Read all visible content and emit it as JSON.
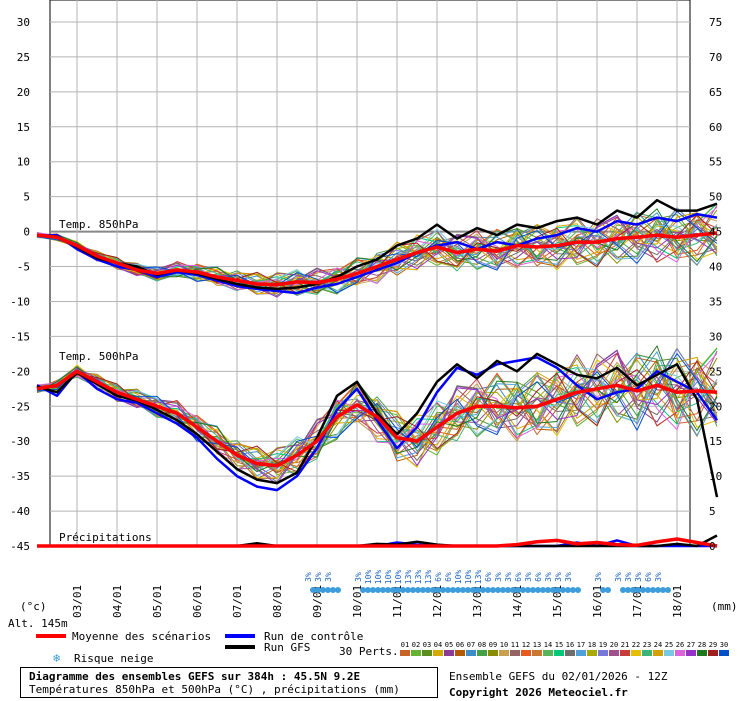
{
  "chart_data": {
    "type": "line",
    "title": "Diagramme des ensembles GEFS sur 384h : 45.5N 9.2E",
    "subtitle": "Températures 850hPa et 500hPa (°C) , précipitations (mm)",
    "xlabel": "",
    "ylabel_left": "(°c)",
    "ylabel_right": "(mm)",
    "left_ticks": [
      "30",
      "25",
      "20",
      "15",
      "10",
      "5",
      "0",
      "-5",
      "-10",
      "-15",
      "-20",
      "-25",
      "-30",
      "-35",
      "-40",
      "-45"
    ],
    "right_ticks": [
      "75",
      "70",
      "65",
      "60",
      "55",
      "50",
      "45",
      "40",
      "35",
      "30",
      "25",
      "20",
      "15",
      "10",
      "5",
      "0"
    ],
    "ylim_left": [
      -45,
      30
    ],
    "ylim_right": [
      0,
      75
    ],
    "x_labels": [
      "03/01",
      "04/01",
      "05/01",
      "06/01",
      "07/01",
      "08/01",
      "09/01",
      "10/01",
      "11/01",
      "12/01",
      "13/01",
      "14/01",
      "15/01",
      "16/01",
      "17/01",
      "18/01"
    ],
    "grid": true,
    "panel_labels": {
      "t850": "Temp. 850hPa",
      "t500": "Temp. 500hPa",
      "precip": "Précipitations"
    },
    "altitude": "Alt. 145m",
    "series": [
      {
        "name": "Moyenne des scénarios",
        "color": "#ff0000",
        "t850": [
          -0.5,
          -0.8,
          -2.0,
          -3.5,
          -4.5,
          -5.5,
          -6.0,
          -5.5,
          -5.8,
          -6.5,
          -7.0,
          -7.5,
          -7.6,
          -7.2,
          -7.3,
          -6.8,
          -6.0,
          -5.0,
          -4.0,
          -3.0,
          -2.2,
          -3.0,
          -2.5,
          -2.8,
          -2.0,
          -2.2,
          -2.0,
          -1.5,
          -1.5,
          -1.0,
          -0.8,
          -0.5,
          -0.8,
          -0.5,
          -0.2
        ],
        "t500": [
          -22.5,
          -22.0,
          -20.0,
          -21.5,
          -23.0,
          -24.0,
          -25.0,
          -26.0,
          -28.0,
          -30.0,
          -32.0,
          -33.2,
          -33.5,
          -32.0,
          -30.0,
          -26.5,
          -24.8,
          -26.5,
          -29.5,
          -30.0,
          -28.0,
          -26.0,
          -25.0,
          -25.0,
          -25.2,
          -25.0,
          -24.0,
          -23.0,
          -22.5,
          -22.0,
          -22.8,
          -22.0,
          -23.0,
          -22.8,
          -23.0
        ],
        "precip": [
          0,
          0,
          0,
          0,
          0,
          0,
          0,
          0,
          0,
          0,
          0,
          0,
          0,
          0,
          0,
          0,
          0,
          0,
          0,
          0,
          0,
          0,
          0,
          0,
          0.2,
          0.6,
          0.8,
          0.3,
          0.5,
          0.2,
          0.1,
          0.6,
          1.0,
          0.5,
          0
        ]
      },
      {
        "name": "Run de contrôle",
        "color": "#0000ff",
        "t850": [
          -0.6,
          -0.5,
          -2.5,
          -4.0,
          -5.0,
          -5.5,
          -6.5,
          -5.8,
          -6.2,
          -7.0,
          -7.8,
          -8.2,
          -8.5,
          -8.8,
          -8.0,
          -7.5,
          -6.5,
          -5.5,
          -4.5,
          -3.0,
          -2.0,
          -1.5,
          -2.5,
          -1.5,
          -2.0,
          -1.0,
          -0.5,
          0.5,
          0.0,
          1.5,
          1.0,
          2.0,
          1.5,
          2.5,
          2.0
        ],
        "t500": [
          -22.0,
          -23.5,
          -20.0,
          -22.5,
          -24.0,
          -24.5,
          -26.0,
          -27.5,
          -29.5,
          -32.5,
          -35.0,
          -36.5,
          -37.0,
          -35.0,
          -31.0,
          -25.5,
          -22.5,
          -27.0,
          -31.0,
          -28.0,
          -23.0,
          -19.5,
          -20.5,
          -19.0,
          -18.5,
          -18.0,
          -19.5,
          -22.0,
          -24.0,
          -23.0,
          -22.5,
          -20.0,
          -21.5,
          -23.0,
          -27.0
        ],
        "precip": [
          0,
          0,
          0,
          0,
          0,
          0,
          0,
          0,
          0,
          0,
          0,
          0,
          0,
          0,
          0,
          0,
          0,
          0,
          0.5,
          0.2,
          0,
          0,
          0,
          0,
          0,
          0,
          0,
          0.5,
          0,
          0.8,
          0,
          0,
          0,
          0,
          0
        ]
      },
      {
        "name": "Run GFS",
        "color": "#000000",
        "t850": [
          -0.5,
          -0.7,
          -2.2,
          -3.8,
          -4.5,
          -5.0,
          -6.2,
          -5.5,
          -6.0,
          -6.8,
          -7.5,
          -8.0,
          -8.2,
          -8.0,
          -7.5,
          -6.5,
          -5.0,
          -4.0,
          -2.0,
          -1.0,
          1.0,
          -1.0,
          0.5,
          -0.5,
          1.0,
          0.5,
          1.5,
          2.0,
          1.0,
          3.0,
          2.0,
          4.5,
          3.0,
          3.0,
          4.0
        ],
        "t500": [
          -22.2,
          -23.0,
          -20.2,
          -21.8,
          -23.5,
          -24.2,
          -25.5,
          -27.0,
          -29.0,
          -31.5,
          -34.0,
          -35.5,
          -36.0,
          -34.5,
          -29.5,
          -23.5,
          -21.5,
          -26.0,
          -29.0,
          -26.0,
          -21.5,
          -19.0,
          -21.0,
          -18.5,
          -20.0,
          -17.5,
          -19.0,
          -20.5,
          -21.0,
          -19.5,
          -22.0,
          -20.5,
          -19.0,
          -24.0,
          -38.0
        ],
        "precip": [
          0,
          0,
          0,
          0,
          0,
          0,
          0,
          0,
          0,
          0,
          0,
          0.4,
          0,
          0,
          0,
          0,
          0,
          0.3,
          0.2,
          0.6,
          0.2,
          0,
          0,
          0,
          0,
          0,
          0,
          0,
          0,
          0,
          0,
          0,
          0.3,
          0,
          1.5
        ]
      }
    ],
    "perturbation_colors": [
      "#c86428",
      "#64b432",
      "#5a8c1e",
      "#d2aa00",
      "#8c3c96",
      "#b45a00",
      "#3c8cc8",
      "#46a046",
      "#8c8c00",
      "#c8a050",
      "#966464",
      "#e65a1e",
      "#c87832",
      "#5ab45a",
      "#00c878",
      "#6e6e6e",
      "#50a0dc",
      "#aaaa00",
      "#7878dc",
      "#a0508c",
      "#c83c3c",
      "#e6be00",
      "#3cb478",
      "#d2a000",
      "#78c8e6",
      "#dc64dc",
      "#9632c8",
      "#1e781e",
      "#a01e1e",
      "#0050c8"
    ]
  },
  "legend": {
    "mean": "Moyenne des scénarios",
    "control": "Run de contrôle",
    "gfs": "Run GFS",
    "snow": "Risque neige",
    "perts_label": "30 Perts.",
    "perts_numbers": [
      "01",
      "02",
      "03",
      "04",
      "05",
      "06",
      "07",
      "08",
      "09",
      "10",
      "11",
      "12",
      "13",
      "14",
      "15",
      "16",
      "17",
      "18",
      "19",
      "20",
      "21",
      "22",
      "23",
      "24",
      "25",
      "26",
      "27",
      "28",
      "29",
      "30"
    ]
  },
  "snow_labels": [
    {
      "day": 6.0,
      "lines": [
        "3%"
      ]
    },
    {
      "day": 6.25,
      "lines": [
        "3%"
      ]
    },
    {
      "day": 6.5,
      "lines": [
        "3%"
      ]
    },
    {
      "day": 7.25,
      "lines": [
        "3%"
      ]
    },
    {
      "day": 7.5,
      "lines": [
        "10%"
      ]
    },
    {
      "day": 7.75,
      "lines": [
        "10%"
      ]
    },
    {
      "day": 8.0,
      "lines": [
        "10%"
      ]
    },
    {
      "day": 8.25,
      "lines": [
        "10%"
      ]
    },
    {
      "day": 8.5,
      "lines": [
        "13%"
      ]
    },
    {
      "day": 8.75,
      "lines": [
        "13%"
      ]
    },
    {
      "day": 9.0,
      "lines": [
        "13%"
      ]
    },
    {
      "day": 9.25,
      "lines": [
        "6%"
      ]
    },
    {
      "day": 9.5,
      "lines": [
        "6%"
      ]
    },
    {
      "day": 9.75,
      "lines": [
        "10%"
      ]
    },
    {
      "day": 10.0,
      "lines": [
        "10%"
      ]
    },
    {
      "day": 10.25,
      "lines": [
        "13%"
      ]
    },
    {
      "day": 10.5,
      "lines": [
        "6%"
      ]
    },
    {
      "day": 10.75,
      "lines": [
        "3%"
      ]
    },
    {
      "day": 11.0,
      "lines": [
        "3%"
      ]
    },
    {
      "day": 11.25,
      "lines": [
        "6%"
      ]
    },
    {
      "day": 11.5,
      "lines": [
        "3%"
      ]
    },
    {
      "day": 11.75,
      "lines": [
        "6%"
      ]
    },
    {
      "day": 12.0,
      "lines": [
        "3%"
      ]
    },
    {
      "day": 12.25,
      "lines": [
        "3%"
      ]
    },
    {
      "day": 12.5,
      "lines": [
        "3%"
      ]
    },
    {
      "day": 13.25,
      "lines": [
        "3%"
      ]
    },
    {
      "day": 13.75,
      "lines": [
        "3%"
      ]
    },
    {
      "day": 14.0,
      "lines": [
        "3%"
      ]
    },
    {
      "day": 14.25,
      "lines": [
        "3%"
      ]
    },
    {
      "day": 14.5,
      "lines": [
        "6%"
      ]
    },
    {
      "day": 14.75,
      "lines": [
        "3%"
      ]
    }
  ],
  "footer": {
    "title": "Diagramme des ensembles GEFS sur 384h : 45.5N 9.2E",
    "subtitle": "Températures 850hPa et 500hPa (°C) , précipitations (mm)",
    "run": "Ensemble GEFS du 02/01/2026 - 12Z",
    "copyright": "Copyright 2026 Meteociel.fr"
  }
}
